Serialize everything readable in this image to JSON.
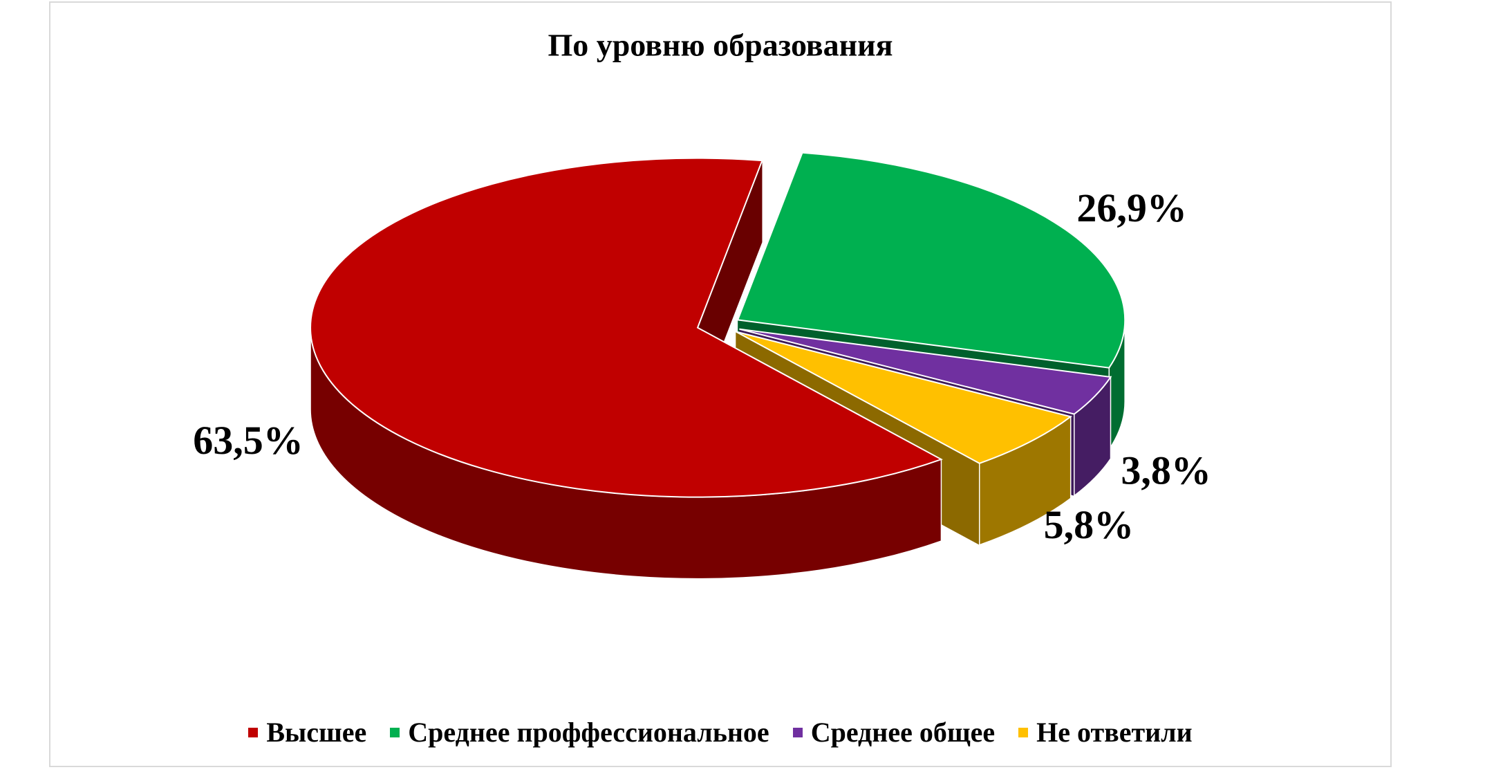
{
  "chart_data": {
    "type": "pie",
    "title": "По уровню образования",
    "categories": [
      "Высшее",
      "Среднее проффессиональное",
      "Среднее общее",
      "Не ответили"
    ],
    "values": [
      63.5,
      26.9,
      3.8,
      5.8
    ],
    "value_labels": [
      "63,5%",
      "26,9%",
      "3,8%",
      "5,8%"
    ],
    "colors": [
      "#c00000",
      "#00b050",
      "#7030a0",
      "#ffc000"
    ],
    "legend": "bottom"
  }
}
